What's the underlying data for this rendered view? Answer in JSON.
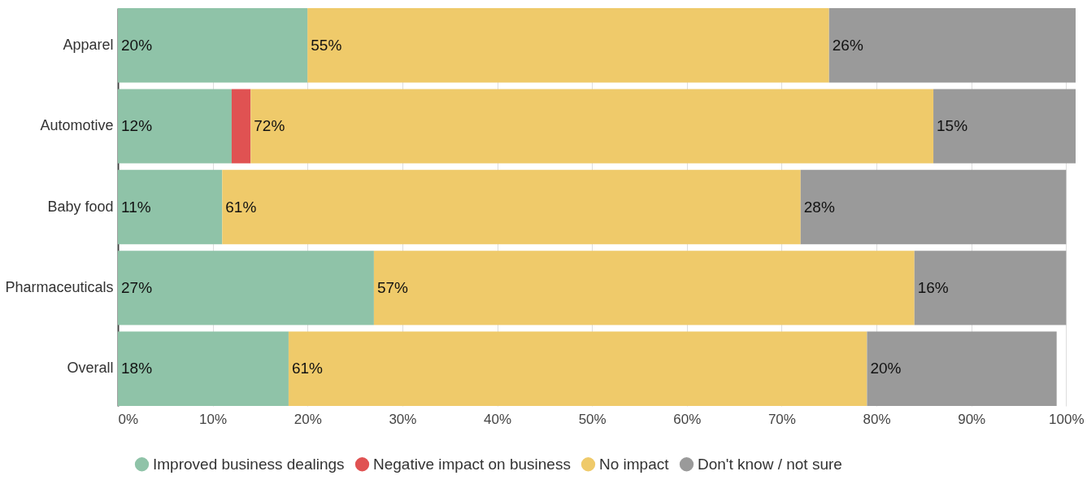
{
  "chart_data": {
    "type": "bar",
    "orientation": "horizontal",
    "stacked": true,
    "categories": [
      "Apparel",
      "Automotive",
      "Baby food",
      "Pharmaceuticals",
      "Overall"
    ],
    "series": [
      {
        "name": "Improved business dealings",
        "color": "#8fc3a8",
        "values": [
          20,
          12,
          11,
          27,
          18
        ],
        "value_labels": [
          "20%",
          "12%",
          "11%",
          "27%",
          "18%"
        ]
      },
      {
        "name": "Negative impact on business",
        "color": "#e05252",
        "values": [
          0,
          2,
          0,
          0,
          0
        ],
        "value_labels": [
          null,
          null,
          null,
          null,
          null
        ]
      },
      {
        "name": "No impact",
        "color": "#efca6a",
        "values": [
          55,
          72,
          61,
          57,
          61
        ],
        "value_labels": [
          "55%",
          "72%",
          "61%",
          "57%",
          "61%"
        ]
      },
      {
        "name": "Don't know / not sure",
        "color": "#9a9a9a",
        "values": [
          26,
          15,
          28,
          16,
          20
        ],
        "value_labels": [
          "26%",
          "15%",
          "28%",
          "16%",
          "20%"
        ]
      }
    ],
    "xlim": [
      0,
      101
    ],
    "xticks": [
      {
        "value": 0,
        "label": "0%"
      },
      {
        "value": 10,
        "label": "10%"
      },
      {
        "value": 20,
        "label": "20%"
      },
      {
        "value": 30,
        "label": "30%"
      },
      {
        "value": 40,
        "label": "40%"
      },
      {
        "value": 50,
        "label": "50%"
      },
      {
        "value": 60,
        "label": "60%"
      },
      {
        "value": 70,
        "label": "70%"
      },
      {
        "value": 80,
        "label": "80%"
      },
      {
        "value": 90,
        "label": "90%"
      },
      {
        "value": 100,
        "label": "100%"
      }
    ],
    "grid": "x",
    "legend": "bottom"
  }
}
